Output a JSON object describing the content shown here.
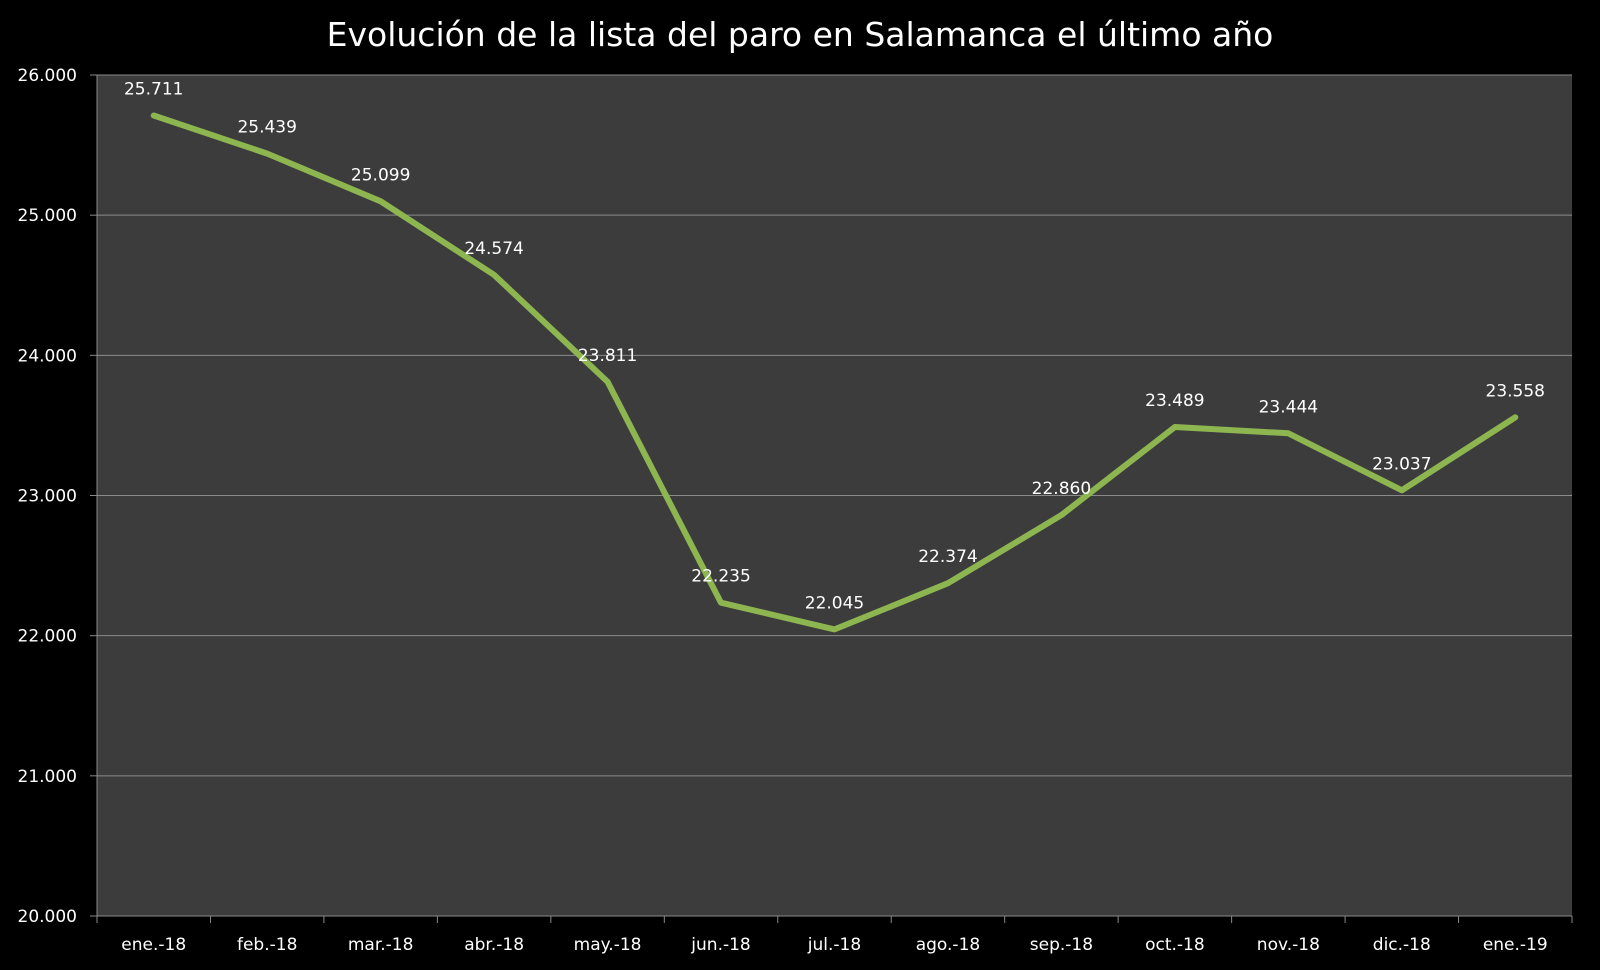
{
  "chart_data": {
    "type": "line",
    "title": "Evolución de la lista del paro en Salamanca el último año",
    "xlabel": "",
    "ylabel": "",
    "categories": [
      "ene.-18",
      "feb.-18",
      "mar.-18",
      "abr.-18",
      "may.-18",
      "jun.-18",
      "jul.-18",
      "ago.-18",
      "sep.-18",
      "oct.-18",
      "nov.-18",
      "dic.-18",
      "ene.-19"
    ],
    "values": [
      25711,
      25439,
      25099,
      24574,
      23811,
      22235,
      22045,
      22374,
      22860,
      23489,
      23444,
      23037,
      23558
    ],
    "value_labels": [
      "25.711",
      "25.439",
      "25.099",
      "24.574",
      "23.811",
      "22.235",
      "22.045",
      "22.374",
      "22.860",
      "23.489",
      "23.444",
      "23.037",
      "23.558"
    ],
    "ylim": [
      20000,
      26000
    ],
    "yticks": [
      20000,
      21000,
      22000,
      23000,
      24000,
      25000,
      26000
    ],
    "ytick_labels": [
      "20.000",
      "21.000",
      "22.000",
      "23.000",
      "24.000",
      "25.000",
      "26.000"
    ],
    "grid": true,
    "legend": "none",
    "colors": {
      "background": "#000000",
      "plot_area": "#3c3c3c",
      "line": "#8db550",
      "gridline": "#8a8a8a",
      "text": "#ffffff"
    }
  }
}
